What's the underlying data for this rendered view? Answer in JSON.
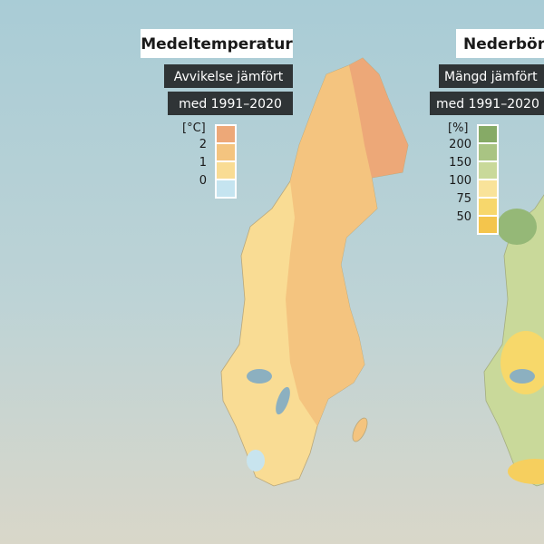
{
  "maps": [
    {
      "title": "Medeltemperatur",
      "subtitle_lines": [
        "Avvikelse jämfört",
        "med 1991–2020"
      ],
      "unit": "[°C]",
      "legend_labels": [
        2,
        1,
        0
      ]
    },
    {
      "title": "Nederbörd",
      "subtitle_lines": [
        "Mängd jämfört",
        "med 1991–2020"
      ],
      "unit": "[%]",
      "legend_labels": [
        200,
        150,
        100,
        75,
        50
      ]
    }
  ]
}
